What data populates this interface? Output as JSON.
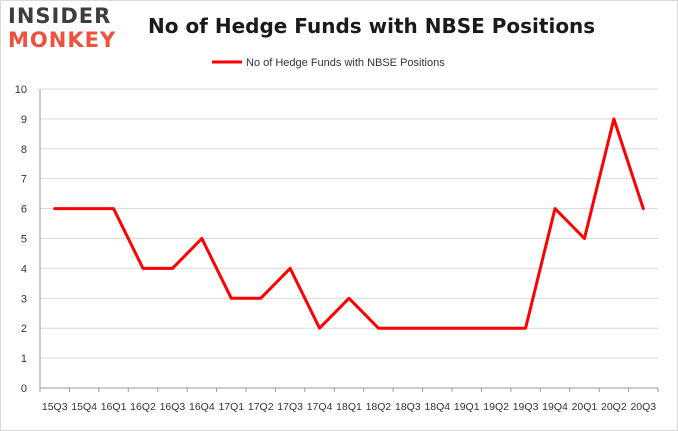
{
  "logo": {
    "line1": "INSIDER",
    "line2": "MONKEY"
  },
  "chart_data": {
    "type": "line",
    "title": "No of Hedge Funds with NBSE Positions",
    "xlabel": "",
    "ylabel": "",
    "categories": [
      "15Q3",
      "15Q4",
      "16Q1",
      "16Q2",
      "16Q3",
      "16Q4",
      "17Q1",
      "17Q2",
      "17Q3",
      "17Q4",
      "18Q1",
      "18Q2",
      "18Q3",
      "18Q4",
      "19Q1",
      "19Q2",
      "19Q3",
      "19Q4",
      "20Q1",
      "20Q2",
      "20Q3"
    ],
    "series": [
      {
        "name": "No of Hedge Funds with NBSE Positions",
        "values": [
          6,
          6,
          6,
          4,
          4,
          5,
          3,
          3,
          4,
          2,
          3,
          2,
          2,
          2,
          2,
          2,
          2,
          6,
          5,
          9,
          6
        ]
      }
    ],
    "ylim": [
      0,
      10
    ],
    "yticks": [
      0,
      1,
      2,
      3,
      4,
      5,
      6,
      7,
      8,
      9,
      10
    ],
    "grid": true,
    "legend": "top-center",
    "colors": {
      "line": "#ff0000",
      "grid": "#d9d9d9",
      "axis": "#9a9a9a",
      "text": "#333333"
    }
  }
}
